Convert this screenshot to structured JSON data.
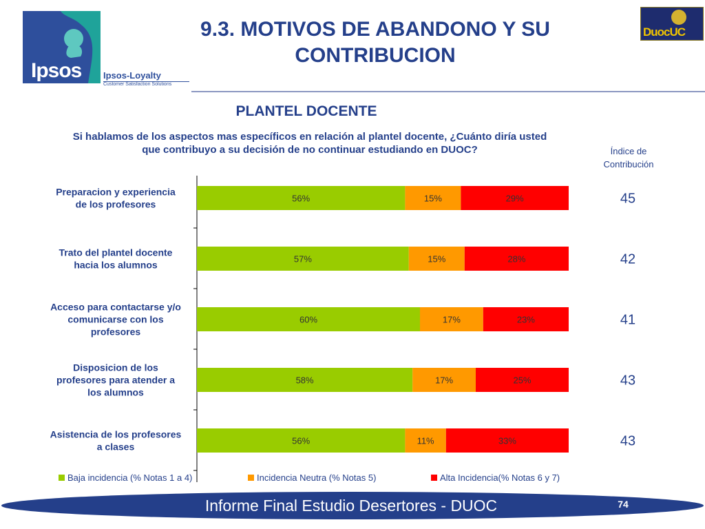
{
  "header": {
    "title_line1": "9.3. MOTIVOS DE ABANDONO Y SU",
    "title_line2": "CONTRIBUCION",
    "logo_text": "Ipsos",
    "loyalty_title": "Ipsos-Loyalty",
    "loyalty_sub": "Customer Satisfaction Solutions",
    "duoc_text": "DuocUC"
  },
  "subtitle": "PLANTEL DOCENTE",
  "question_line1": "Si hablamos de los aspectos mas específicos en relación al plantel docente, ¿Cuánto diría usted",
  "question_line2": "que contribuyo a su decisión de no continuar estudiando en DUOC?",
  "index_header_line1": "Índice de",
  "index_header_line2": "Contribución",
  "chart_data": {
    "type": "bar",
    "orientation": "horizontal-stacked",
    "categories": [
      [
        "Preparacion y experiencia",
        "de los profesores"
      ],
      [
        "Trato del plantel docente",
        "hacia los alumnos"
      ],
      [
        "Acceso para contactarse y/o",
        "comunicarse con los",
        "profesores"
      ],
      [
        "Disposicion de los",
        "profesores para atender a",
        "los alumnos"
      ],
      [
        "Asistencia de los profesores",
        "a clases"
      ]
    ],
    "series": [
      {
        "name": "Baja incidencia (% Notas 1 a 4)",
        "color": "#99cc00",
        "values": [
          56,
          57,
          60,
          58,
          56
        ],
        "labels": [
          "56%",
          "57%",
          "60%",
          "58%",
          "56%"
        ]
      },
      {
        "name": "Incidencia Neutra (% Notas 5)",
        "color": "#ff9900",
        "values": [
          15,
          15,
          17,
          17,
          11
        ],
        "labels": [
          "15%",
          "15%",
          "17%",
          "17%",
          "11%"
        ]
      },
      {
        "name": "Alta Incidencia(% Notas 6 y 7)",
        "color": "#ff0000",
        "values": [
          29,
          28,
          23,
          25,
          33
        ],
        "labels": [
          "29%",
          "28%",
          "23%",
          "25%",
          "33%"
        ]
      }
    ],
    "contribution_index": [
      "45",
      "42",
      "41",
      "43",
      "43"
    ],
    "xlim": [
      0,
      100
    ],
    "legend_position": "bottom"
  },
  "footer": {
    "text": "Informe Final Estudio Desertores - DUOC",
    "page_number": "74"
  }
}
